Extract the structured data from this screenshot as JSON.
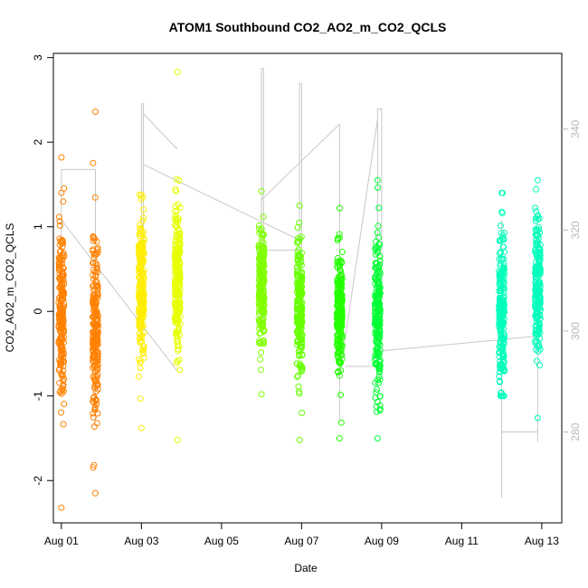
{
  "chart_data": {
    "type": "scatter",
    "title": "ATOM1 Southbound CO2_AO2_m_CO2_QCLS",
    "xlabel": "Date",
    "ylabel": "CO2_AO2_m_CO2_QCLS",
    "x_ticks": [
      "Aug 01",
      "Aug 03",
      "Aug 05",
      "Aug 07",
      "Aug 09",
      "Aug 11",
      "Aug 13"
    ],
    "y_ticks": [
      "-2",
      "-1",
      "0",
      "1",
      "2",
      "3"
    ],
    "y2_ticks": [
      "280",
      "300",
      "320",
      "340"
    ],
    "xlim_days": [
      0.8,
      13.5
    ],
    "ylim": [
      -2.5,
      3.05
    ],
    "y2lim": [
      262,
      355
    ],
    "grid": false,
    "legend": "none",
    "points_clusters": [
      {
        "x_day": 1.0,
        "center": 0.0,
        "spread": 0.55,
        "range": [
          -2.32,
          1.82
        ],
        "color": "#ff8000"
      },
      {
        "x_day": 1.85,
        "center": -0.15,
        "spread": 0.5,
        "range": [
          -2.15,
          2.36
        ],
        "color": "#ff8000"
      },
      {
        "x_day": 3.0,
        "center": 0.25,
        "spread": 0.45,
        "range": [
          -1.38,
          1.38
        ],
        "color": "#ffee00"
      },
      {
        "x_day": 3.9,
        "center": 0.35,
        "spread": 0.45,
        "range": [
          -1.52,
          2.83
        ],
        "color": "#e6ff00"
      },
      {
        "x_day": 6.0,
        "center": 0.3,
        "spread": 0.35,
        "range": [
          -0.98,
          1.42
        ],
        "color": "#80ff00"
      },
      {
        "x_day": 6.95,
        "center": 0.0,
        "spread": 0.4,
        "range": [
          -1.52,
          1.25
        ],
        "color": "#66ff00"
      },
      {
        "x_day": 7.95,
        "center": 0.0,
        "spread": 0.35,
        "range": [
          -1.5,
          1.22
        ],
        "color": "#22ff00"
      },
      {
        "x_day": 8.9,
        "center": 0.0,
        "spread": 0.45,
        "range": [
          -1.5,
          1.55
        ],
        "color": "#00ff33"
      },
      {
        "x_day": 12.0,
        "center": 0.0,
        "spread": 0.45,
        "range": [
          -1.0,
          1.4
        ],
        "color": "#00ffbb"
      },
      {
        "x_day": 12.9,
        "center": 0.3,
        "spread": 0.4,
        "range": [
          -1.26,
          1.55
        ],
        "color": "#00ffbb"
      }
    ],
    "y2_line_segments": [
      {
        "x_day": [
          1.0,
          1.0,
          1.85,
          1.85
        ],
        "y2": [
          318,
          332,
          332,
          282
        ]
      },
      {
        "x_day": [
          1.0,
          3.9
        ],
        "y2": [
          322,
          292
        ]
      },
      {
        "x_day": [
          3.0,
          3.0,
          3.05,
          3.05
        ],
        "y2": [
          300,
          345,
          345,
          300
        ]
      },
      {
        "x_day": [
          3.05,
          3.9
        ],
        "y2": [
          343,
          336
        ]
      },
      {
        "x_day": [
          3.05,
          6.95
        ],
        "y2": [
          333,
          318
        ]
      },
      {
        "x_day": [
          6.0,
          6.0,
          6.05,
          6.05
        ],
        "y2": [
          300,
          352,
          352,
          300
        ]
      },
      {
        "x_day": [
          6.0,
          7.95
        ],
        "y2": [
          326,
          341
        ]
      },
      {
        "x_day": [
          6.0,
          6.95
        ],
        "y2": [
          316,
          316
        ]
      },
      {
        "x_day": [
          6.95,
          6.95,
          7.0,
          7.0
        ],
        "y2": [
          300,
          349,
          349,
          300
        ]
      },
      {
        "x_day": [
          7.95,
          7.95
        ],
        "y2": [
          282,
          341
        ]
      },
      {
        "x_day": [
          7.95,
          8.9
        ],
        "y2": [
          291,
          342
        ]
      },
      {
        "x_day": [
          8.9,
          8.9,
          9.0,
          9.0
        ],
        "y2": [
          300,
          344,
          344,
          300
        ]
      },
      {
        "x_day": [
          8.1,
          8.9
        ],
        "y2": [
          293,
          293
        ]
      },
      {
        "x_day": [
          8.9,
          12.9
        ],
        "y2": [
          296,
          299
        ]
      },
      {
        "x_day": [
          12.0,
          12.0
        ],
        "y2": [
          267,
          322
        ]
      },
      {
        "x_day": [
          12.0,
          12.9
        ],
        "y2": [
          280,
          280
        ]
      },
      {
        "x_day": [
          12.9,
          12.9
        ],
        "y2": [
          278,
          318
        ]
      }
    ]
  }
}
